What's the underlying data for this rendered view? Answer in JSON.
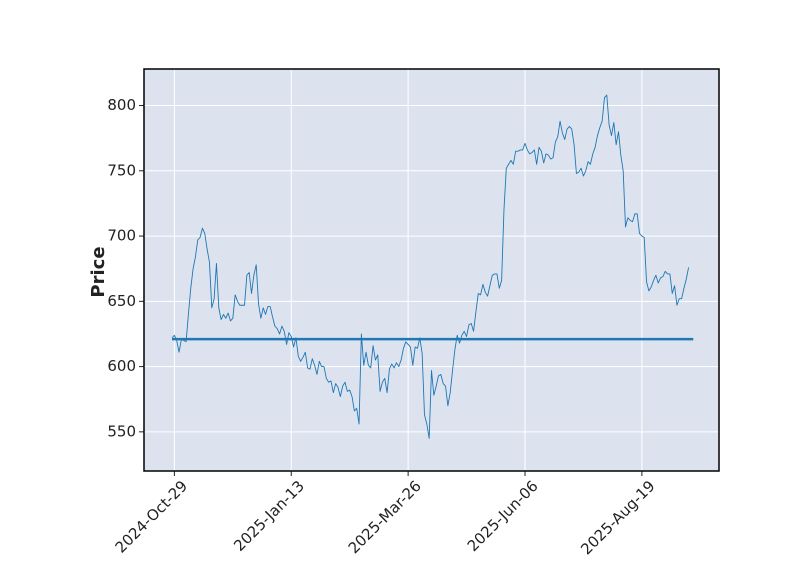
{
  "chart_data": {
    "type": "line",
    "ylabel": "Price",
    "color": "#1f77b4",
    "hlines": [
      621
    ],
    "hline_color": "#1f77b4",
    "background": "#dce3ef",
    "grid": true,
    "xlim": [
      -12,
      234
    ],
    "ylim": [
      520,
      828
    ],
    "xticks": [
      {
        "value": 1,
        "label": "2024-Oct-29"
      },
      {
        "value": 51,
        "label": "2025-Jan-13"
      },
      {
        "value": 101,
        "label": "2025-Mar-26"
      },
      {
        "value": 151,
        "label": "2025-Jun-06"
      },
      {
        "value": 201,
        "label": "2025-Aug-19"
      }
    ],
    "yticks": [
      550,
      600,
      650,
      700,
      750,
      800
    ],
    "values": [
      622,
      624,
      620,
      611,
      621,
      620,
      619,
      640,
      660,
      675,
      684,
      697,
      699,
      706,
      702,
      690,
      680,
      645,
      652,
      679,
      645,
      636,
      640,
      637,
      641,
      635,
      637,
      655,
      650,
      647,
      647,
      647,
      670,
      672,
      656,
      670,
      678,
      648,
      637,
      645,
      640,
      646,
      646,
      638,
      631,
      629,
      625,
      631,
      627,
      617,
      626,
      623,
      615,
      622,
      608,
      604,
      607,
      611,
      599,
      598,
      606,
      601,
      594,
      604,
      600,
      600,
      591,
      588,
      589,
      580,
      587,
      584,
      577,
      585,
      588,
      581,
      582,
      577,
      566,
      568,
      556,
      625,
      601,
      611,
      601,
      599,
      616,
      605,
      609,
      581,
      588,
      591,
      580,
      598,
      602,
      599,
      603,
      600,
      605,
      614,
      619,
      617,
      615,
      601,
      615,
      614,
      622,
      610,
      563,
      556,
      545,
      597,
      578,
      585,
      593,
      594,
      587,
      585,
      570,
      580,
      597,
      613,
      624,
      618,
      624,
      627,
      623,
      632,
      633,
      627,
      642,
      656,
      655,
      663,
      657,
      654,
      662,
      670,
      671,
      671,
      660,
      666,
      720,
      752,
      755,
      758,
      755,
      765,
      765,
      766,
      766,
      771,
      766,
      763,
      764,
      766,
      755,
      768,
      765,
      756,
      763,
      762,
      759,
      760,
      772,
      776,
      788,
      779,
      774,
      782,
      784,
      782,
      770,
      748,
      749,
      752,
      746,
      750,
      757,
      755,
      763,
      768,
      777,
      783,
      788,
      806,
      808,
      785,
      777,
      787,
      770,
      780,
      762,
      750,
      707,
      714,
      712,
      711,
      717,
      717,
      702,
      700,
      699,
      665,
      658,
      661,
      666,
      670,
      664,
      668,
      669,
      673,
      671,
      671,
      656,
      662,
      647,
      652,
      652,
      660,
      667,
      676
    ]
  }
}
